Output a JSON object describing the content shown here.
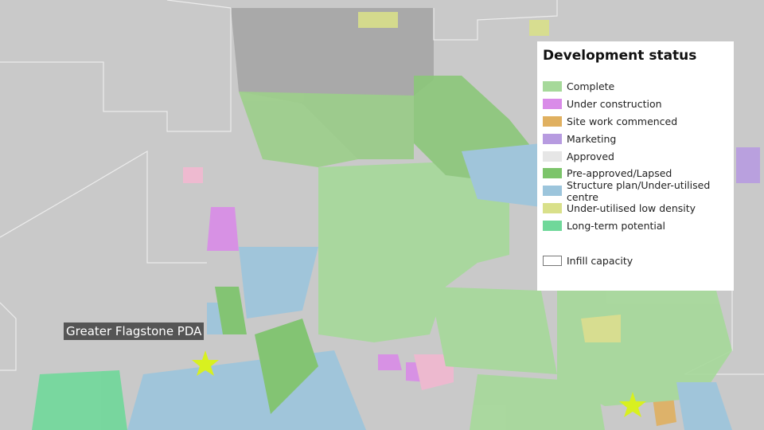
{
  "map_label": "Greater Flagstone PDA",
  "legend": {
    "title": "Development status",
    "items": [
      {
        "label": "Complete",
        "color": "#a6d99a"
      },
      {
        "label": "Under construction",
        "color": "#d98be8"
      },
      {
        "label": "Site work commenced",
        "color": "#e0b060"
      },
      {
        "label": "Marketing",
        "color": "#b79be0"
      },
      {
        "label": "Approved",
        "color": "#e6e6e6"
      },
      {
        "label": "Pre-approved/Lapsed",
        "color": "#7cc46a"
      },
      {
        "label": "Structure plan/Under-utilised centre",
        "color": "#9cc5dc"
      },
      {
        "label": "Under-utilised low density",
        "color": "#d9e08a"
      },
      {
        "label": "Long-term potential",
        "color": "#70d89a"
      }
    ],
    "infill": {
      "label": "Infill capacity",
      "color": "#ffffff"
    }
  }
}
